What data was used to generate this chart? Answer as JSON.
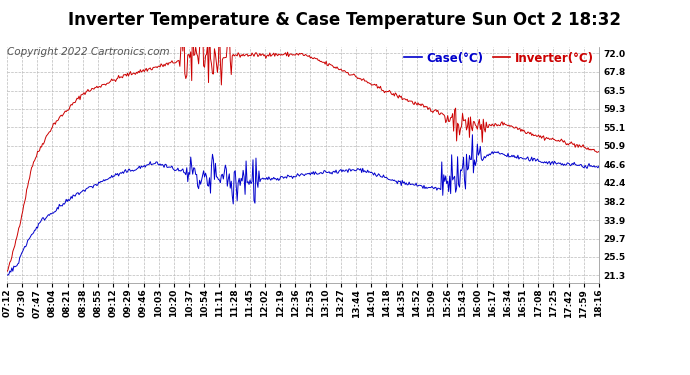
{
  "title": "Inverter Temperature & Case Temperature Sun Oct 2 18:32",
  "copyright": "Copyright 2022 Cartronics.com",
  "legend_case": "Case(°C)",
  "legend_inverter": "Inverter(°C)",
  "yticks": [
    21.3,
    25.5,
    29.7,
    33.9,
    38.2,
    42.4,
    46.6,
    50.9,
    55.1,
    59.3,
    63.5,
    67.8,
    72.0
  ],
  "ylim": [
    19.5,
    73.5
  ],
  "xtick_labels": [
    "07:12",
    "07:30",
    "07:47",
    "08:04",
    "08:21",
    "08:38",
    "08:55",
    "09:12",
    "09:29",
    "09:46",
    "10:03",
    "10:20",
    "10:37",
    "10:54",
    "11:11",
    "11:28",
    "11:45",
    "12:02",
    "12:19",
    "12:36",
    "12:53",
    "13:10",
    "13:27",
    "13:44",
    "14:01",
    "14:18",
    "14:35",
    "14:52",
    "15:09",
    "15:26",
    "15:43",
    "16:00",
    "16:17",
    "16:34",
    "16:51",
    "17:08",
    "17:25",
    "17:42",
    "17:59",
    "18:16"
  ],
  "bg_color": "#ffffff",
  "grid_color": "#bbbbbb",
  "case_color": "#0000cc",
  "inverter_color": "#cc0000",
  "title_fontsize": 12,
  "copyright_fontsize": 7.5,
  "tick_fontsize": 6.5,
  "legend_fontsize": 8.5
}
